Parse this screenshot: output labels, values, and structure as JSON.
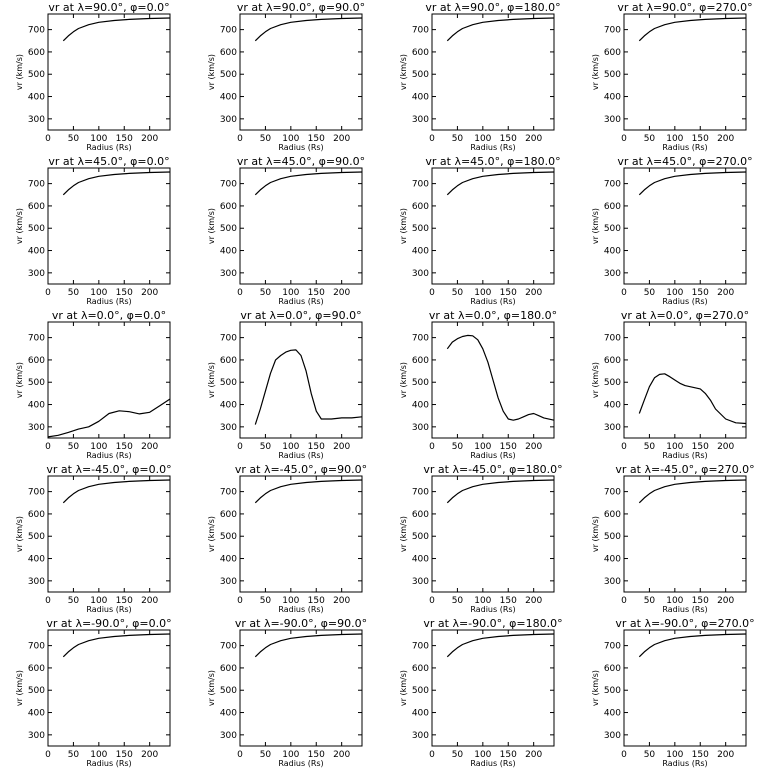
{
  "chart_data": {
    "type": "line",
    "rows": 5,
    "cols": 4,
    "xlabel": "Radius (Rs)",
    "ylabel": "vr (km/s)",
    "xlim": [
      0,
      240
    ],
    "ylim": [
      250,
      770
    ],
    "xticks": [
      0,
      50,
      100,
      150,
      200
    ],
    "yticks": [
      300,
      400,
      500,
      600,
      700
    ],
    "grid": false,
    "panels": [
      {
        "title": "vr at λ=90.0°, φ=0.0°",
        "x": [
          30,
          40,
          50,
          60,
          80,
          100,
          130,
          160,
          200,
          240
        ],
        "y": [
          650,
          672,
          690,
          705,
          722,
          733,
          741,
          746,
          750,
          752
        ]
      },
      {
        "title": "vr at λ=90.0°, φ=90.0°",
        "x": [
          30,
          40,
          50,
          60,
          80,
          100,
          130,
          160,
          200,
          240
        ],
        "y": [
          650,
          672,
          690,
          705,
          722,
          733,
          741,
          746,
          750,
          752
        ]
      },
      {
        "title": "vr at λ=90.0°, φ=180.0°",
        "x": [
          30,
          40,
          50,
          60,
          80,
          100,
          130,
          160,
          200,
          240
        ],
        "y": [
          650,
          672,
          690,
          705,
          722,
          733,
          741,
          746,
          750,
          752
        ]
      },
      {
        "title": "vr at λ=90.0°, φ=270.0°",
        "x": [
          30,
          40,
          50,
          60,
          80,
          100,
          130,
          160,
          200,
          240
        ],
        "y": [
          650,
          672,
          690,
          705,
          722,
          733,
          741,
          746,
          750,
          752
        ]
      },
      {
        "title": "vr at λ=45.0°, φ=0.0°",
        "x": [
          30,
          40,
          50,
          60,
          80,
          100,
          130,
          160,
          200,
          240
        ],
        "y": [
          650,
          672,
          690,
          705,
          722,
          733,
          741,
          746,
          750,
          752
        ]
      },
      {
        "title": "vr at λ=45.0°, φ=90.0°",
        "x": [
          30,
          40,
          50,
          60,
          80,
          100,
          130,
          160,
          200,
          240
        ],
        "y": [
          650,
          672,
          690,
          705,
          722,
          733,
          741,
          746,
          750,
          752
        ]
      },
      {
        "title": "vr at λ=45.0°, φ=180.0°",
        "x": [
          30,
          40,
          50,
          60,
          80,
          100,
          130,
          160,
          200,
          240
        ],
        "y": [
          650,
          672,
          690,
          705,
          722,
          733,
          741,
          746,
          750,
          752
        ]
      },
      {
        "title": "vr at λ=45.0°, φ=270.0°",
        "x": [
          30,
          40,
          50,
          60,
          80,
          100,
          130,
          160,
          200,
          240
        ],
        "y": [
          650,
          672,
          690,
          705,
          722,
          733,
          741,
          746,
          750,
          752
        ]
      },
      {
        "title": "vr at λ=0.0°, φ=0.0°",
        "x": [
          0,
          20,
          40,
          60,
          80,
          100,
          120,
          140,
          160,
          180,
          200,
          220,
          240
        ],
        "y": [
          255,
          262,
          275,
          290,
          300,
          325,
          360,
          372,
          368,
          358,
          365,
          395,
          425
        ]
      },
      {
        "title": "vr at λ=0.0°, φ=90.0°",
        "x": [
          30,
          40,
          50,
          60,
          70,
          80,
          90,
          100,
          110,
          120,
          130,
          140,
          150,
          160,
          180,
          200,
          220,
          240
        ],
        "y": [
          310,
          380,
          460,
          540,
          600,
          620,
          635,
          643,
          645,
          620,
          550,
          450,
          370,
          335,
          335,
          340,
          340,
          345
        ]
      },
      {
        "title": "vr at λ=0.0°, φ=180.0°",
        "x": [
          30,
          40,
          50,
          60,
          70,
          80,
          90,
          100,
          110,
          120,
          130,
          140,
          150,
          160,
          170,
          180,
          190,
          200,
          210,
          220,
          240
        ],
        "y": [
          650,
          680,
          695,
          705,
          710,
          708,
          690,
          650,
          590,
          510,
          430,
          370,
          335,
          330,
          335,
          345,
          355,
          360,
          350,
          340,
          330
        ]
      },
      {
        "title": "vr at λ=0.0°, φ=270.0°",
        "x": [
          30,
          40,
          50,
          60,
          70,
          80,
          90,
          100,
          110,
          120,
          130,
          140,
          150,
          160,
          170,
          180,
          200,
          220,
          240
        ],
        "y": [
          360,
          420,
          480,
          520,
          535,
          538,
          525,
          510,
          495,
          485,
          480,
          475,
          470,
          450,
          420,
          380,
          335,
          318,
          315
        ]
      },
      {
        "title": "vr at λ=-45.0°, φ=0.0°",
        "x": [
          30,
          40,
          50,
          60,
          80,
          100,
          130,
          160,
          200,
          240
        ],
        "y": [
          650,
          672,
          690,
          705,
          722,
          733,
          741,
          746,
          750,
          752
        ]
      },
      {
        "title": "vr at λ=-45.0°, φ=90.0°",
        "x": [
          30,
          40,
          50,
          60,
          80,
          100,
          130,
          160,
          200,
          240
        ],
        "y": [
          650,
          672,
          690,
          705,
          722,
          733,
          741,
          746,
          750,
          752
        ]
      },
      {
        "title": "vr at λ=-45.0°, φ=180.0°",
        "x": [
          30,
          40,
          50,
          60,
          80,
          100,
          130,
          160,
          200,
          240
        ],
        "y": [
          650,
          672,
          690,
          705,
          722,
          733,
          741,
          746,
          750,
          752
        ]
      },
      {
        "title": "vr at λ=-45.0°, φ=270.0°",
        "x": [
          30,
          40,
          50,
          60,
          80,
          100,
          130,
          160,
          200,
          240
        ],
        "y": [
          650,
          672,
          690,
          705,
          722,
          733,
          741,
          746,
          750,
          752
        ]
      },
      {
        "title": "vr at λ=-90.0°, φ=0.0°",
        "x": [
          30,
          40,
          50,
          60,
          80,
          100,
          130,
          160,
          200,
          240
        ],
        "y": [
          650,
          672,
          690,
          705,
          722,
          733,
          741,
          746,
          750,
          752
        ]
      },
      {
        "title": "vr at λ=-90.0°, φ=90.0°",
        "x": [
          30,
          40,
          50,
          60,
          80,
          100,
          130,
          160,
          200,
          240
        ],
        "y": [
          650,
          672,
          690,
          705,
          722,
          733,
          741,
          746,
          750,
          752
        ]
      },
      {
        "title": "vr at λ=-90.0°, φ=180.0°",
        "x": [
          30,
          40,
          50,
          60,
          80,
          100,
          130,
          160,
          200,
          240
        ],
        "y": [
          650,
          672,
          690,
          705,
          722,
          733,
          741,
          746,
          750,
          752
        ]
      },
      {
        "title": "vr at λ=-90.0°, φ=270.0°",
        "x": [
          30,
          40,
          50,
          60,
          80,
          100,
          130,
          160,
          200,
          240
        ],
        "y": [
          650,
          672,
          690,
          705,
          722,
          733,
          741,
          746,
          750,
          752
        ]
      }
    ]
  }
}
